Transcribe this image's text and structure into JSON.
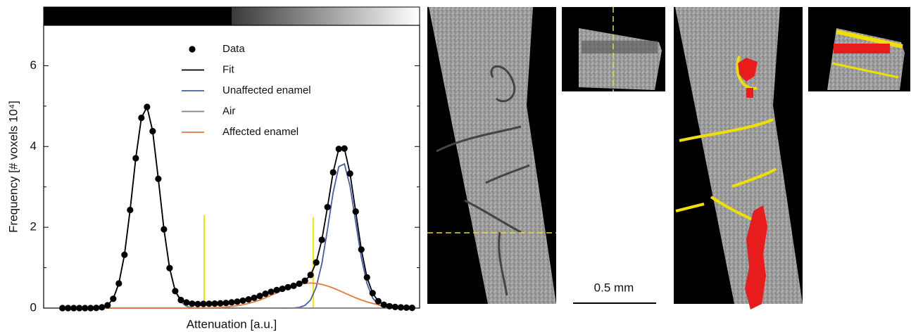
{
  "chart_data": {
    "type": "scatter",
    "xlabel": "Attenuation [a.u.]",
    "ylabel": "Frequency [# voxels 10⁴]",
    "xlim": [
      0,
      100
    ],
    "ylim": [
      0,
      7
    ],
    "yticks": [
      0,
      2,
      4,
      6
    ],
    "yminor": [
      1,
      3,
      5
    ],
    "x": [
      5,
      6.5,
      8,
      9.5,
      11,
      12.5,
      14,
      15.5,
      17,
      18.5,
      20,
      21.5,
      23,
      24.5,
      26,
      27.5,
      29,
      30.5,
      32,
      33.5,
      35,
      36.5,
      38,
      39.5,
      41,
      42.5,
      44,
      45.5,
      47,
      48.5,
      50,
      51.5,
      53,
      54.5,
      56,
      57.5,
      59,
      60.5,
      62,
      63.5,
      65,
      66.5,
      68,
      69.5,
      71,
      72.5,
      74,
      75.5,
      77,
      78.5,
      80,
      81.5,
      83,
      84.5,
      86,
      87.5,
      89,
      90.5,
      92,
      93.5,
      95,
      96.5,
      98
    ],
    "series": [
      {
        "name": "Data",
        "kind": "points",
        "color": "#000000",
        "values": [
          0,
          0,
          0,
          0,
          0,
          0,
          0.004,
          0.019,
          0.07,
          0.23,
          0.61,
          1.32,
          2.43,
          3.71,
          4.71,
          4.98,
          4.38,
          3.2,
          1.95,
          0.99,
          0.42,
          0.2,
          0.14,
          0.11,
          0.1,
          0.104,
          0.107,
          0.111,
          0.118,
          0.127,
          0.141,
          0.159,
          0.184,
          0.215,
          0.254,
          0.3,
          0.355,
          0.404,
          0.446,
          0.478,
          0.517,
          0.551,
          0.604,
          0.677,
          0.82,
          1.13,
          1.69,
          2.5,
          3.36,
          3.94,
          3.95,
          3.33,
          2.39,
          1.45,
          0.76,
          0.37,
          0.17,
          0.083,
          0.047,
          0.028,
          0.018,
          0.011,
          0.007
        ]
      },
      {
        "name": "Fit",
        "kind": "line",
        "color": "#000000",
        "values": [
          0,
          0,
          0,
          0,
          0,
          0,
          0.004,
          0.019,
          0.07,
          0.23,
          0.61,
          1.32,
          2.43,
          3.71,
          4.71,
          4.98,
          4.38,
          3.2,
          1.95,
          0.99,
          0.42,
          0.2,
          0.14,
          0.11,
          0.1,
          0.104,
          0.107,
          0.111,
          0.118,
          0.127,
          0.141,
          0.159,
          0.184,
          0.215,
          0.254,
          0.3,
          0.355,
          0.404,
          0.446,
          0.478,
          0.517,
          0.551,
          0.604,
          0.677,
          0.82,
          1.13,
          1.69,
          2.5,
          3.36,
          3.94,
          3.95,
          3.33,
          2.39,
          1.45,
          0.76,
          0.37,
          0.17,
          0.083,
          0.047,
          0.028,
          0.018,
          0.011,
          0.007
        ]
      },
      {
        "name": "Unaffected enamel",
        "kind": "line",
        "color": "#4a5aa8",
        "values": [
          0,
          0,
          0,
          0,
          0,
          0,
          0,
          0,
          0,
          0,
          0,
          0,
          0,
          0,
          0,
          0,
          0,
          0,
          0,
          0,
          0,
          0,
          0,
          0,
          0,
          0,
          0,
          0,
          0,
          0,
          0,
          0,
          0,
          0,
          0,
          0,
          0,
          0,
          0,
          0,
          0.001,
          0.004,
          0.018,
          0.066,
          0.2,
          0.52,
          1.1,
          1.95,
          2.86,
          3.5,
          3.57,
          3.02,
          2.13,
          1.25,
          0.61,
          0.25,
          0.085,
          0.024,
          0.006,
          0.001,
          0,
          0,
          0
        ]
      },
      {
        "name": "Air",
        "kind": "line",
        "color": "#808080",
        "values": [
          0,
          0,
          0,
          0,
          0,
          0,
          0.004,
          0.019,
          0.07,
          0.23,
          0.61,
          1.32,
          2.43,
          3.71,
          4.71,
          4.98,
          4.38,
          3.2,
          1.95,
          0.99,
          0.42,
          0.15,
          0.043,
          0.01,
          0.002,
          0,
          0,
          0,
          0,
          0,
          0,
          0,
          0,
          0,
          0,
          0,
          0,
          0,
          0,
          0,
          0,
          0,
          0,
          0,
          0,
          0,
          0,
          0,
          0,
          0,
          0,
          0,
          0,
          0,
          0,
          0,
          0,
          0,
          0,
          0,
          0,
          0,
          0
        ]
      },
      {
        "name": "Affected enamel",
        "kind": "line",
        "color": "#e8783a",
        "values": [
          0,
          0,
          0,
          0,
          0,
          0,
          0,
          0,
          0,
          0,
          0,
          0,
          0,
          0,
          0,
          0,
          0,
          0,
          0,
          0,
          0,
          0,
          0.001,
          0.001,
          0.002,
          0.004,
          0.007,
          0.011,
          0.018,
          0.027,
          0.041,
          0.059,
          0.084,
          0.115,
          0.154,
          0.2,
          0.255,
          0.314,
          0.376,
          0.438,
          0.496,
          0.547,
          0.586,
          0.611,
          0.62,
          0.611,
          0.586,
          0.547,
          0.496,
          0.438,
          0.376,
          0.314,
          0.255,
          0.2,
          0.154,
          0.115,
          0.084,
          0.059,
          0.041,
          0.027,
          0.018,
          0.011,
          0.007
        ]
      }
    ],
    "thresholds": {
      "color": "#f2e600",
      "x": [
        42.7,
        71.7
      ],
      "top": [
        2.3,
        2.25
      ]
    },
    "legend": "top-center"
  },
  "images": {
    "scale_bar_label": "0.5 mm"
  }
}
